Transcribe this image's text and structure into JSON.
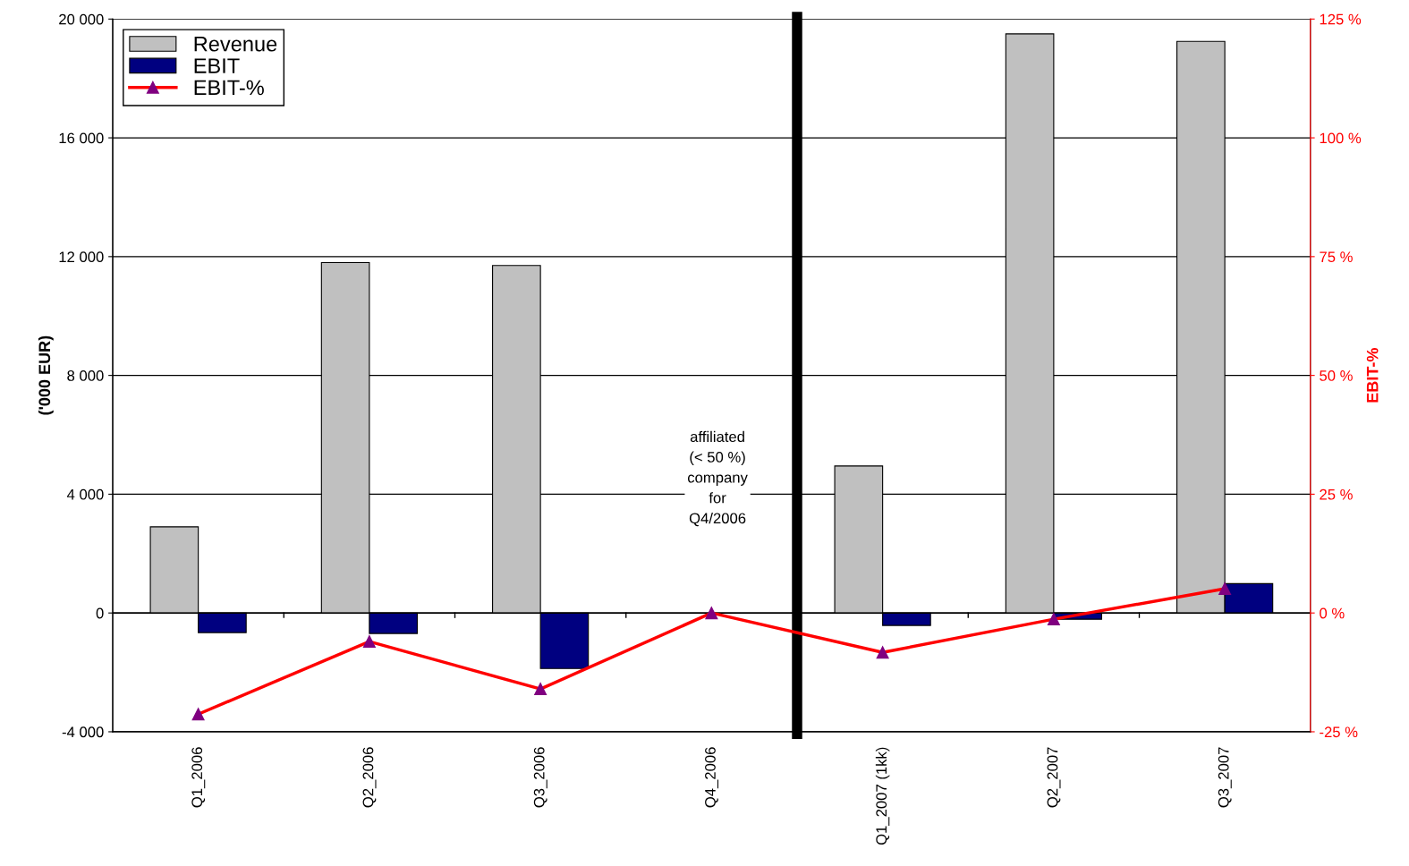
{
  "chart_data": {
    "type": "bar",
    "categories": [
      "Q1_2006",
      "Q2_2006",
      "Q3_2006",
      "Q4_2006",
      "Q1_2007 (1kk)",
      "Q2_2007",
      "Q3_2007"
    ],
    "series": [
      {
        "name": "Revenue",
        "color": "#c0c0c0",
        "values": [
          2900,
          11800,
          11700,
          null,
          4950,
          19500,
          19250
        ]
      },
      {
        "name": "EBIT",
        "color": "#000080",
        "values": [
          -660,
          -690,
          -1870,
          null,
          -420,
          -210,
          990
        ]
      },
      {
        "name": "EBIT-%",
        "type": "line",
        "axis": "y2",
        "color": "#ff0000",
        "marker": "triangle",
        "values": [
          -21.3,
          -6.0,
          -16.0,
          0,
          -8.3,
          -1.3,
          5.1
        ]
      }
    ],
    "ylabel": "('000 EUR)",
    "y2label": "EBIT-%",
    "ylim": [
      -4000,
      20000
    ],
    "yticks": [
      {
        "value": -4000,
        "label": "-4 000"
      },
      0,
      {
        "value": 4000,
        "label": "4 000"
      },
      {
        "value": 8000,
        "label": "8 000"
      },
      {
        "value": 12000,
        "label": "12 000"
      },
      {
        "value": 16000,
        "label": "16 000"
      },
      {
        "value": 20000,
        "label": "20 000"
      }
    ],
    "y2lim": [
      -25,
      125
    ],
    "y2ticks": [
      {
        "value": -25,
        "label": "-25 %"
      },
      {
        "value": 0,
        "label": "0 %"
      },
      {
        "value": 25,
        "label": "25 %"
      },
      {
        "value": 50,
        "label": "50 %"
      },
      {
        "value": 75,
        "label": "75 %"
      },
      {
        "value": 100,
        "label": "100 %"
      },
      {
        "value": 125,
        "label": "125 %"
      }
    ],
    "annotations": [
      "affiliated\n(< 50 %)\ncompany\nfor\nQ4/2006"
    ],
    "grid": "y",
    "legend": "top left"
  }
}
